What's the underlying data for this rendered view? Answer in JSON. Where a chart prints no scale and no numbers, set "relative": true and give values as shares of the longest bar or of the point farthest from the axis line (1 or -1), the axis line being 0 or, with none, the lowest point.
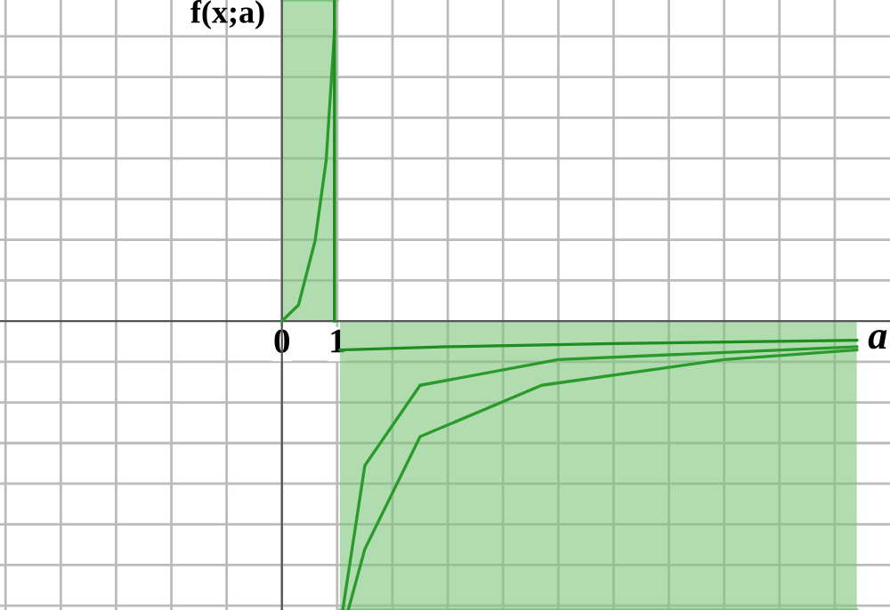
{
  "chart_data": {
    "type": "line",
    "xlabel": "a",
    "ylabel": "f(x;a)",
    "relative": true,
    "grid": true,
    "legend": false,
    "marker": "none",
    "line_style": "solid",
    "xlim": [
      -5.1,
      11.0
    ],
    "xticks": [
      {
        "value": -5,
        "label": null
      },
      {
        "value": -4,
        "label": null
      },
      {
        "value": -3,
        "label": null
      },
      {
        "value": -2,
        "label": null
      },
      {
        "value": -1,
        "label": null
      },
      0,
      1,
      {
        "value": 2,
        "label": null
      },
      {
        "value": 3,
        "label": null
      },
      {
        "value": 4,
        "label": null
      },
      {
        "value": 5,
        "label": null
      },
      {
        "value": 6,
        "label": null
      },
      {
        "value": 7,
        "label": null
      },
      {
        "value": 8,
        "label": null
      },
      {
        "value": 9,
        "label": null
      },
      {
        "value": 10,
        "label": null
      }
    ],
    "series": [
      {
        "type": "area",
        "color": "#7cc47c",
        "x": [
          0,
          1
        ],
        "values": [
          1,
          1
        ]
      },
      {
        "type": "area",
        "color": "#7cc47c",
        "x": [
          1.05,
          10.4
        ],
        "values": [
          -0.9,
          -0.9
        ]
      },
      {
        "color": "#1e8c1e",
        "x": [
          1.05,
          3,
          6,
          10.4
        ],
        "values": [
          -0.09,
          -0.08,
          -0.07,
          -0.06
        ]
      },
      {
        "color": "#2a9a2a",
        "x": [
          1.2,
          1.5,
          2.5,
          4.7,
          8,
          10.4
        ],
        "values": [
          -0.9,
          -0.71,
          -0.36,
          -0.2,
          -0.12,
          -0.09
        ]
      },
      {
        "color": "#2a9a2a",
        "x": [
          1.1,
          1.5,
          2.5,
          5,
          10.4
        ],
        "values": [
          -0.9,
          -0.45,
          -0.2,
          -0.12,
          -0.08
        ]
      },
      {
        "color": "#2a9a2a",
        "x": [
          0,
          0.3,
          0.6,
          0.8,
          0.95
        ],
        "values": [
          0,
          0.05,
          0.25,
          0.5,
          0.9
        ]
      },
      {
        "color": "#1e8c1e",
        "x": [
          0.95,
          0.95
        ],
        "values": [
          0,
          1
        ]
      }
    ]
  }
}
